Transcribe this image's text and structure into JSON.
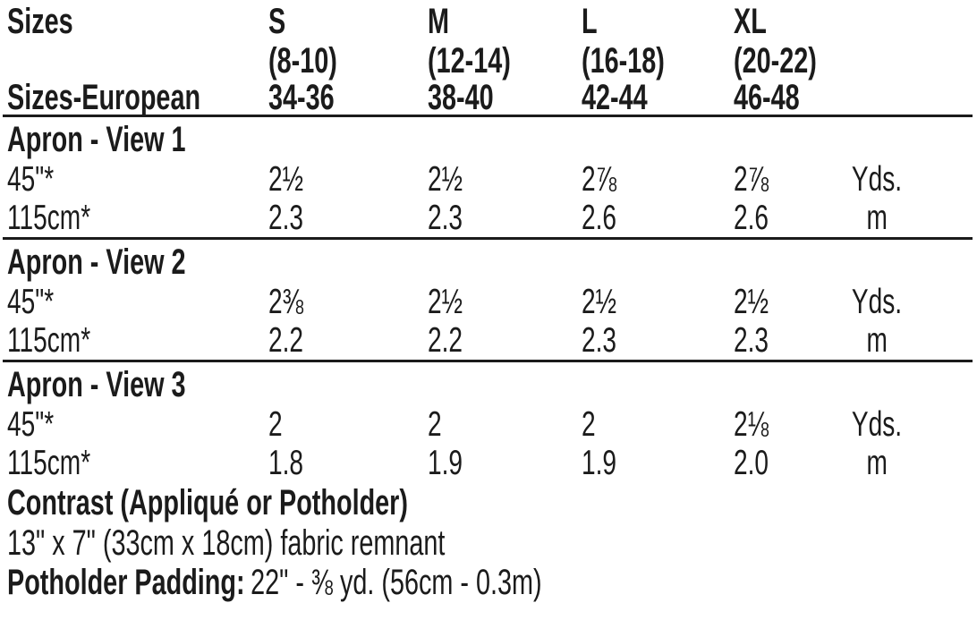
{
  "page": {
    "background": "#ffffff",
    "text_color": "#1b1b1b"
  },
  "table": {
    "corner_label": "Sizes",
    "european_label": "Sizes-European",
    "columns": [
      {
        "size": "S",
        "range": "(8-10)",
        "european": "34-36"
      },
      {
        "size": "M",
        "range": "(12-14)",
        "european": "38-40"
      },
      {
        "size": "L",
        "range": "(16-18)",
        "european": "42-44"
      },
      {
        "size": "XL",
        "range": "(20-22)",
        "european": "46-48"
      }
    ],
    "sections": [
      {
        "title": "Apron - View 1",
        "rows": [
          {
            "label": "45\"*",
            "values": [
              "2½",
              "2½",
              "2⅞",
              "2⅞"
            ],
            "unit": "Yds."
          },
          {
            "label": "115cm*",
            "values": [
              "2.3",
              "2.3",
              "2.6",
              "2.6"
            ],
            "unit": "m"
          }
        ]
      },
      {
        "title": "Apron - View 2",
        "rows": [
          {
            "label": "45\"*",
            "values": [
              "2⅜",
              "2½",
              "2½",
              "2½"
            ],
            "unit": "Yds."
          },
          {
            "label": "115cm*",
            "values": [
              "2.2",
              "2.2",
              "2.3",
              "2.3"
            ],
            "unit": "m"
          }
        ]
      },
      {
        "title": "Apron - View 3",
        "rows": [
          {
            "label": "45\"*",
            "values": [
              "2",
              "2",
              "2",
              "2⅛"
            ],
            "unit": "Yds."
          },
          {
            "label": "115cm*",
            "values": [
              "1.8",
              "1.9",
              "1.9",
              "2.0"
            ],
            "unit": "m"
          }
        ]
      }
    ],
    "notes": {
      "contrast_title": "Contrast (Appliqué or Potholder)",
      "contrast_detail": "13\" x 7\" (33cm x 18cm) fabric remnant",
      "padding_label": "Potholder Padding:",
      "padding_value": "22\" - ⅜ yd. (56cm - 0.3m)"
    }
  }
}
